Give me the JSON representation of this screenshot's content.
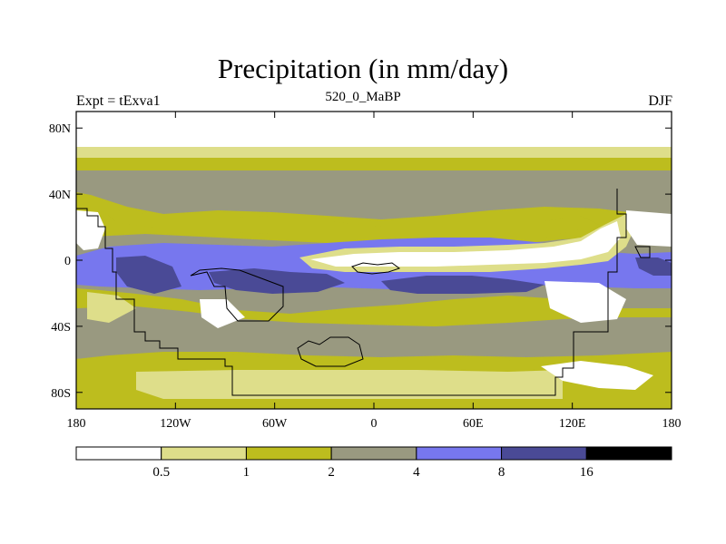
{
  "chart_data": {
    "type": "heatmap",
    "title": "Precipitation (in mm/day)",
    "left_label": "Expt = tExva1",
    "center_label": "520_0_MaBP",
    "right_label": "DJF",
    "xlim": [
      -180,
      180
    ],
    "ylim": [
      -90,
      90
    ],
    "x_ticks": [
      {
        "value": -180,
        "label": "180"
      },
      {
        "value": -120,
        "label": "120W"
      },
      {
        "value": -60,
        "label": "60W"
      },
      {
        "value": 0,
        "label": "0"
      },
      {
        "value": 60,
        "label": "60E"
      },
      {
        "value": 120,
        "label": "120E"
      },
      {
        "value": 180,
        "label": "180"
      }
    ],
    "y_ticks": [
      {
        "value": 80,
        "label": "80N"
      },
      {
        "value": 40,
        "label": "40N"
      },
      {
        "value": 0,
        "label": "0"
      },
      {
        "value": -40,
        "label": "40S"
      },
      {
        "value": -80,
        "label": "80S"
      }
    ],
    "levels": [
      0.5,
      1,
      2,
      4,
      8,
      16
    ],
    "level_labels": [
      "0.5",
      "1",
      "2",
      "4",
      "8",
      "16"
    ],
    "colors": [
      "#ffffff",
      "#dede8a",
      "#bdbd1e",
      "#999980",
      "#7777ee",
      "#4a4a96",
      "#000000"
    ]
  }
}
